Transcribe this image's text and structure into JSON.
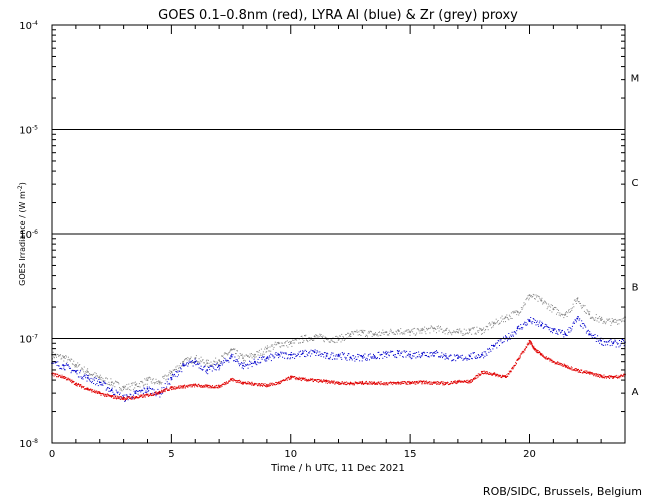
{
  "chart_data": {
    "type": "scatter",
    "title": "GOES 0.1–0.8nm (red), LYRA Al (blue) & Zr (grey) proxy",
    "xlabel": "Time / h UTC, 11 Dec 2021",
    "ylabel_main": "GOES Irradiance / (W m",
    "ylabel_exp": "-2",
    "ylabel_end": ")",
    "credit": "ROB/SIDC, Brussels, Belgium",
    "xlim": [
      0,
      24
    ],
    "ylim": [
      1e-08,
      0.0001
    ],
    "yscale": "log",
    "x_ticks": [
      0,
      5,
      10,
      15,
      20
    ],
    "x_tick_labels": [
      "0",
      "5",
      "10",
      "15",
      "20"
    ],
    "y_ticks": [
      {
        "base": "10",
        "exp": "-4"
      },
      {
        "base": "10",
        "exp": "-5"
      },
      {
        "base": "10",
        "exp": "-6"
      },
      {
        "base": "10",
        "exp": "-7"
      },
      {
        "base": "10",
        "exp": "-8"
      }
    ],
    "y_tick_values": [
      0.0001,
      1e-05,
      1e-06,
      1e-07,
      1e-08
    ],
    "flare_class_lines": [
      1e-05,
      1e-06,
      1e-07
    ],
    "flare_classes": [
      {
        "label": "M",
        "value": 3.16e-05
      },
      {
        "label": "C",
        "value": 3.16e-06
      },
      {
        "label": "B",
        "value": 3.16e-07
      },
      {
        "label": "A",
        "value": 3.16e-08
      }
    ],
    "colors": {
      "goes": "#e00000",
      "lyra_al": "#0000cc",
      "lyra_zr": "#888888",
      "axes": "#000000"
    },
    "series": [
      {
        "id": "goes",
        "x": [
          0,
          0.5,
          1,
          1.5,
          2,
          2.5,
          3,
          3.5,
          4,
          4.5,
          5,
          5.5,
          6,
          6.5,
          7,
          7.5,
          8,
          8.5,
          9,
          9.5,
          10,
          10.5,
          11,
          11.5,
          12,
          12.5,
          13,
          13.5,
          14,
          14.5,
          15,
          15.5,
          16,
          16.5,
          17,
          17.5,
          18,
          18.5,
          19,
          19.5,
          20,
          20.2,
          20.5,
          21,
          21.5,
          22,
          22.5,
          23,
          23.5,
          24
        ],
        "values": [
          4.6e-08,
          4.3e-08,
          3.7e-08,
          3.3e-08,
          3e-08,
          2.8e-08,
          2.7e-08,
          2.75e-08,
          2.9e-08,
          3.1e-08,
          3.4e-08,
          3.5e-08,
          3.6e-08,
          3.5e-08,
          3.5e-08,
          4.1e-08,
          3.8e-08,
          3.7e-08,
          3.6e-08,
          3.8e-08,
          4.3e-08,
          4.1e-08,
          4e-08,
          3.9e-08,
          3.8e-08,
          3.75e-08,
          3.8e-08,
          3.8e-08,
          3.75e-08,
          3.8e-08,
          3.8e-08,
          3.85e-08,
          3.8e-08,
          3.75e-08,
          3.9e-08,
          3.9e-08,
          4.8e-08,
          4.6e-08,
          4.3e-08,
          6.3e-08,
          9.5e-08,
          8e-08,
          7e-08,
          6e-08,
          5.5e-08,
          5e-08,
          4.7e-08,
          4.4e-08,
          4.3e-08,
          4.5e-08
        ]
      },
      {
        "id": "lyra_al",
        "x": [
          0,
          0.5,
          1,
          1.5,
          2,
          2.5,
          3,
          3.5,
          4,
          4.5,
          5,
          5.5,
          6,
          6.5,
          7,
          7.5,
          8,
          8.5,
          9,
          9.5,
          10,
          10.5,
          11,
          11.5,
          12,
          12.5,
          13,
          13.5,
          14,
          14.5,
          15,
          15.5,
          16,
          16.5,
          17,
          17.5,
          18,
          18.5,
          19,
          19.5,
          20,
          20.5,
          21,
          21.5,
          22,
          22.5,
          23,
          23.5,
          24
        ],
        "values": [
          5.8e-08,
          5.5e-08,
          4.8e-08,
          4.2e-08,
          3.8e-08,
          3.2e-08,
          2.7e-08,
          3e-08,
          3.3e-08,
          3e-08,
          4.2e-08,
          5.5e-08,
          6e-08,
          5e-08,
          5.5e-08,
          6.8e-08,
          5.5e-08,
          6e-08,
          6.5e-08,
          7e-08,
          7e-08,
          7.2e-08,
          7.4e-08,
          6.8e-08,
          7e-08,
          6.6e-08,
          6.7e-08,
          6.8e-08,
          7.1e-08,
          7.2e-08,
          7e-08,
          7.2e-08,
          7.3e-08,
          6.8e-08,
          6.5e-08,
          6.8e-08,
          7e-08,
          8.5e-08,
          1e-07,
          1.25e-07,
          1.5e-07,
          1.35e-07,
          1.2e-07,
          1.1e-07,
          1.55e-07,
          1.1e-07,
          9.5e-08,
          9e-08,
          9.2e-08
        ]
      },
      {
        "id": "lyra_zr",
        "x": [
          0,
          0.5,
          1,
          1.5,
          2,
          2.5,
          3,
          3.5,
          4,
          4.5,
          5,
          5.5,
          6,
          6.5,
          7,
          7.5,
          8,
          8.5,
          9,
          9.5,
          10,
          10.5,
          11,
          11.5,
          12,
          12.5,
          13,
          13.5,
          14,
          14.5,
          15,
          15.5,
          16,
          16.5,
          17,
          17.5,
          18,
          18.5,
          19,
          19.5,
          20,
          20.5,
          21,
          21.5,
          22,
          22.5,
          23,
          23.5,
          24
        ],
        "values": [
          7e-08,
          6.6e-08,
          5.6e-08,
          4.8e-08,
          4.2e-08,
          3.8e-08,
          3.4e-08,
          3.6e-08,
          4e-08,
          3.8e-08,
          4.8e-08,
          6e-08,
          6.5e-08,
          5.8e-08,
          6.2e-08,
          7.8e-08,
          6.5e-08,
          7e-08,
          8e-08,
          9e-08,
          9e-08,
          1e-07,
          1.05e-07,
          1e-07,
          1e-07,
          1.1e-07,
          1.15e-07,
          1.1e-07,
          1.15e-07,
          1.2e-07,
          1.15e-07,
          1.2e-07,
          1.25e-07,
          1.2e-07,
          1.15e-07,
          1.2e-07,
          1.2e-07,
          1.4e-07,
          1.6e-07,
          1.8e-07,
          2.6e-07,
          2.3e-07,
          1.9e-07,
          1.7e-07,
          2.4e-07,
          1.7e-07,
          1.5e-07,
          1.45e-07,
          1.6e-07
        ]
      }
    ]
  }
}
